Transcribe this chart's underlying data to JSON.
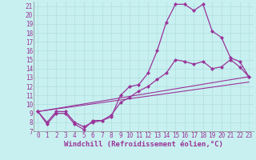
{
  "xlabel": "Windchill (Refroidissement éolien,°C)",
  "bg_color": "#c8f0f0",
  "line_color": "#993399",
  "grid_color": "#b0dede",
  "xlim": [
    -0.5,
    23.5
  ],
  "ylim": [
    7,
    21.5
  ],
  "xticks": [
    0,
    1,
    2,
    3,
    4,
    5,
    6,
    7,
    8,
    9,
    10,
    11,
    12,
    13,
    14,
    15,
    16,
    17,
    18,
    19,
    20,
    21,
    22,
    23
  ],
  "yticks": [
    7,
    8,
    9,
    10,
    11,
    12,
    13,
    14,
    15,
    16,
    17,
    18,
    19,
    20,
    21
  ],
  "line1_x": [
    0,
    1,
    2,
    3,
    4,
    5,
    6,
    7,
    8,
    9,
    10,
    11,
    12,
    13,
    14,
    15,
    16,
    17,
    18,
    19,
    20,
    21,
    22,
    23
  ],
  "line1_y": [
    9.2,
    7.8,
    9.0,
    9.0,
    7.8,
    7.2,
    8.2,
    8.2,
    8.6,
    11.0,
    12.0,
    12.2,
    13.5,
    16.0,
    19.2,
    21.2,
    21.2,
    20.5,
    21.2,
    18.2,
    17.5,
    15.2,
    14.8,
    13.1
  ],
  "line2_x": [
    0,
    1,
    2,
    3,
    4,
    5,
    6,
    7,
    8,
    9,
    10,
    11,
    12,
    13,
    14,
    15,
    16,
    17,
    18,
    19,
    20,
    21,
    22,
    23
  ],
  "line2_y": [
    9.2,
    8.0,
    9.2,
    9.2,
    8.0,
    7.5,
    8.0,
    8.2,
    8.8,
    10.2,
    10.8,
    11.5,
    12.0,
    12.8,
    13.5,
    15.0,
    14.8,
    14.5,
    14.8,
    14.0,
    14.2,
    15.0,
    14.2,
    13.1
  ],
  "line3_x": [
    0,
    23
  ],
  "line3_y": [
    9.2,
    13.1
  ],
  "line4_x": [
    0,
    23
  ],
  "line4_y": [
    9.2,
    12.5
  ],
  "tick_fontsize": 5.5,
  "label_fontsize": 6.5
}
